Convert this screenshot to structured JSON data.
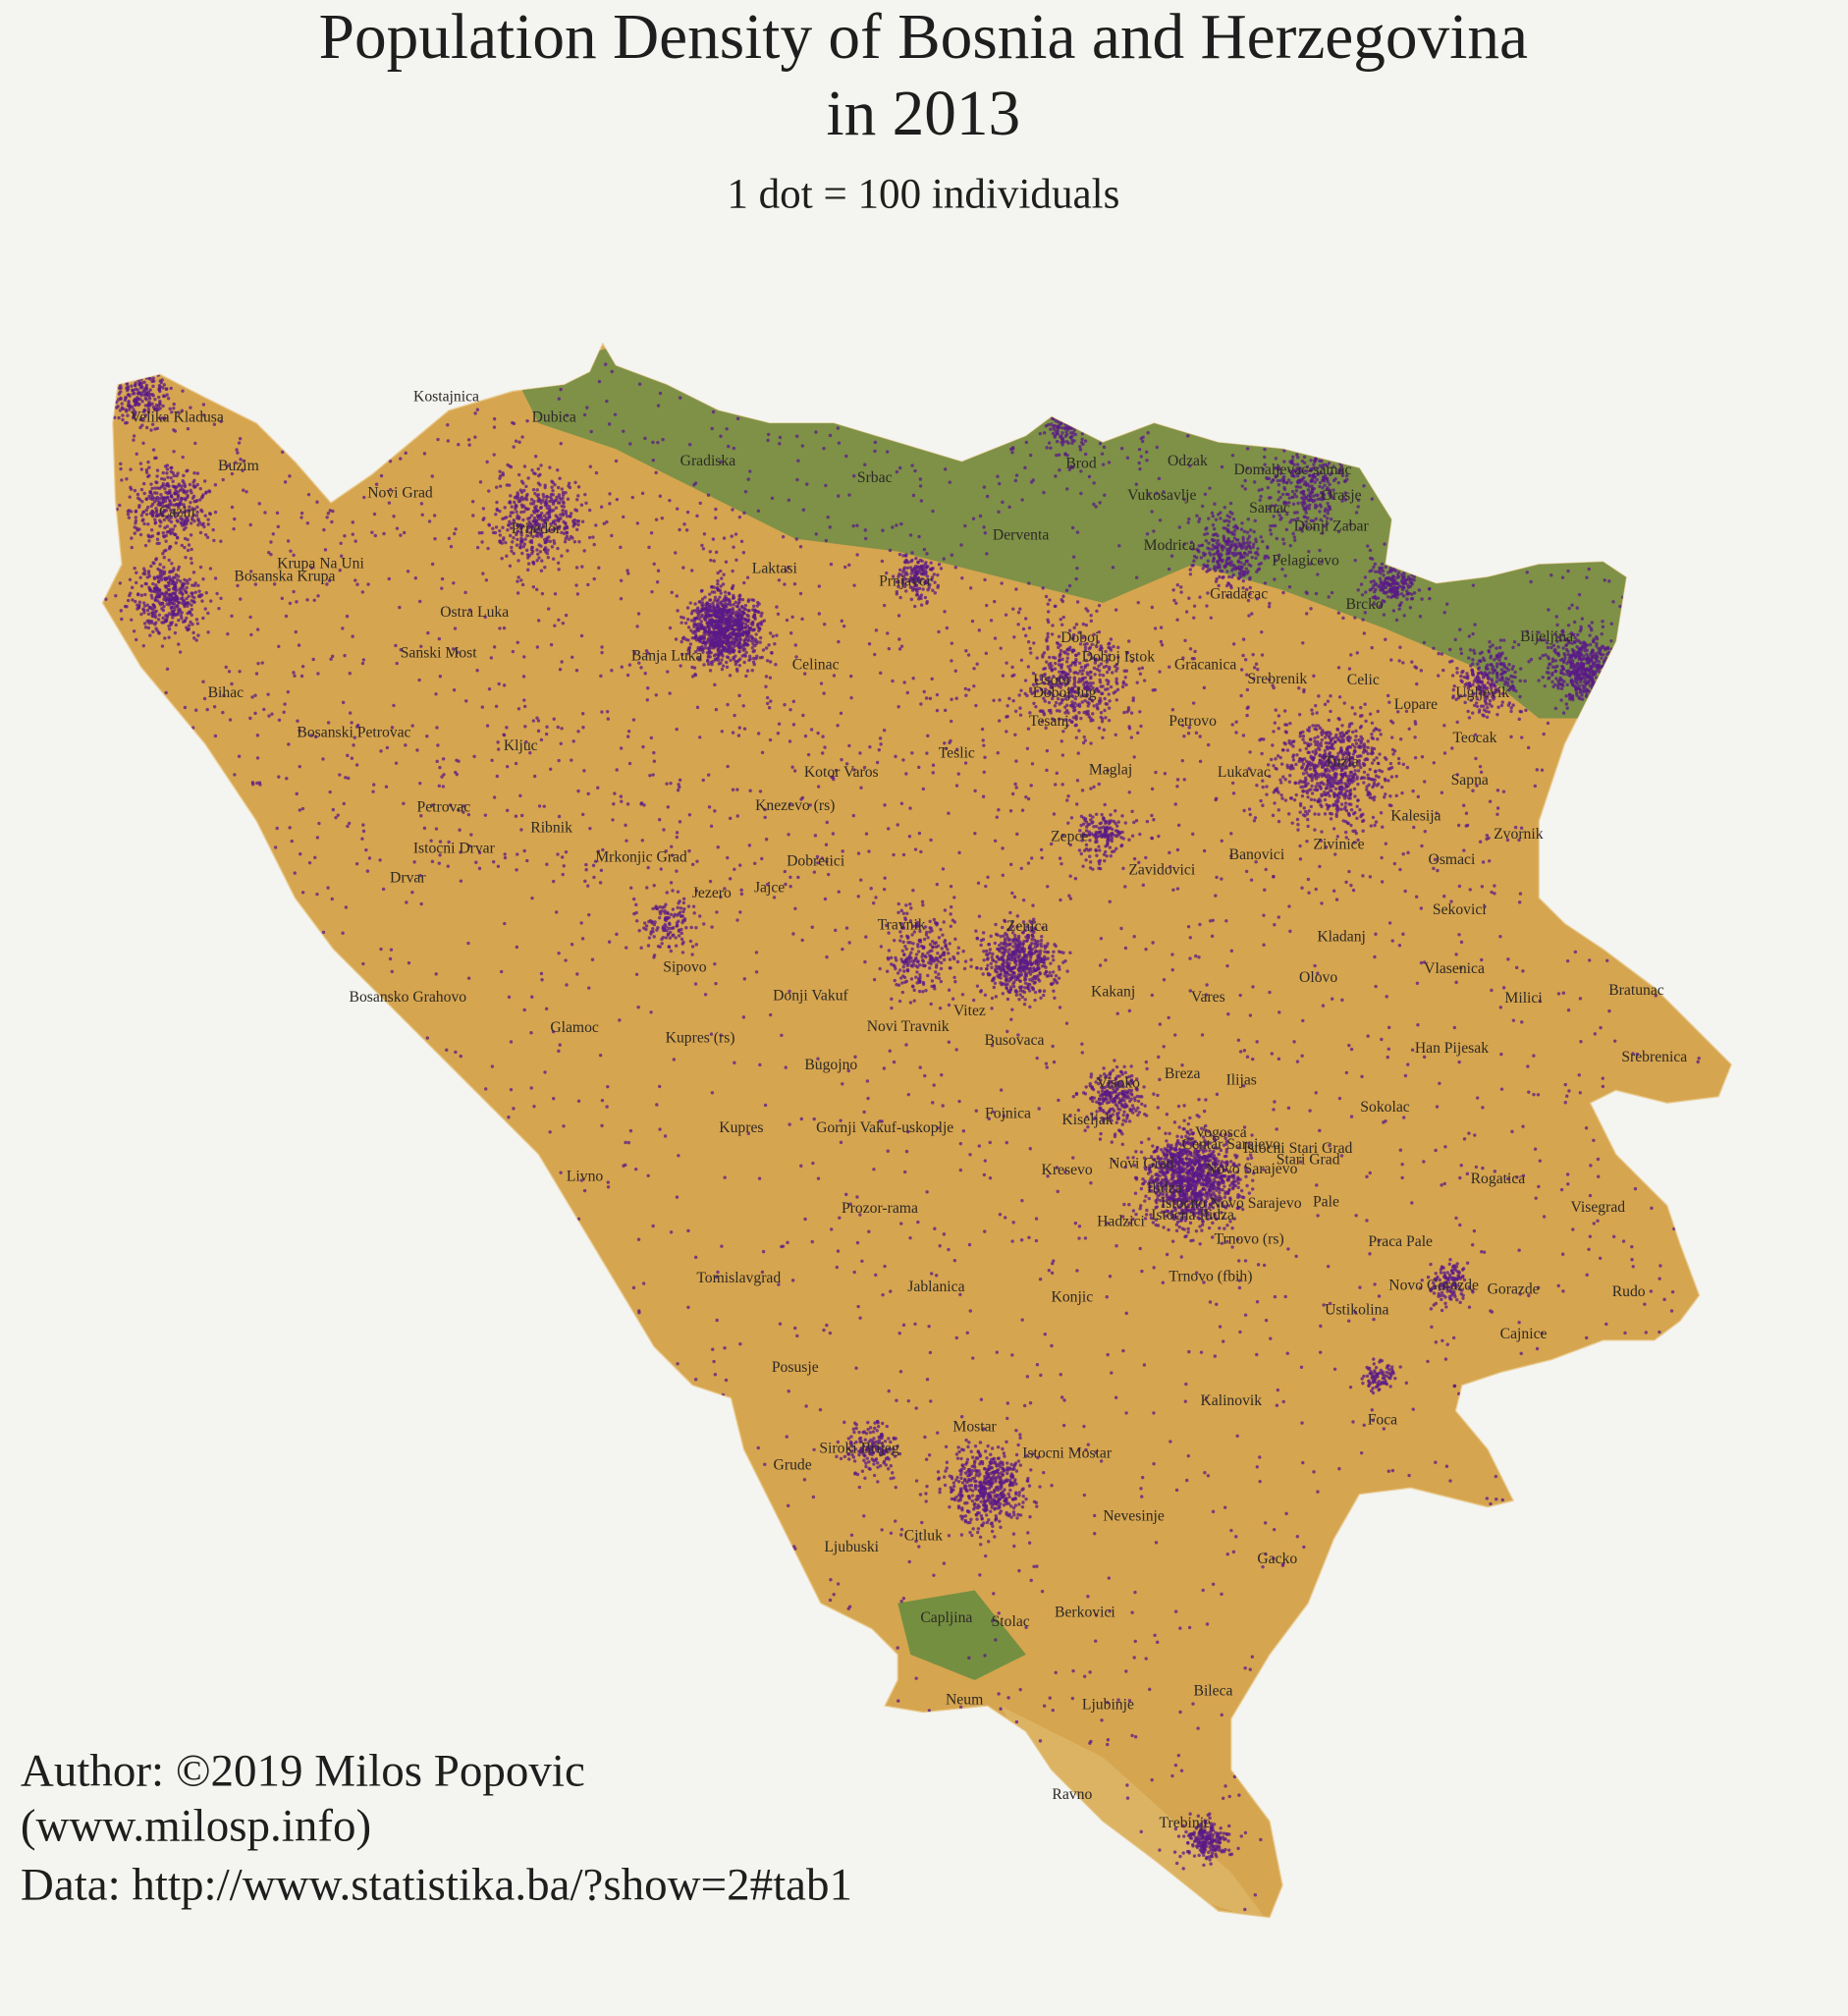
{
  "title_lines": [
    "Population Density of Bosnia and Herzegovina",
    "in 2013"
  ],
  "subtitle": "1 dot = 100 individuals",
  "places": [
    "Kostajnica",
    "Velika Kladusa",
    "Dubica",
    "Buzim",
    "Novi Grad",
    "Gradiska",
    "Srbac",
    "Brod",
    "Odzak",
    "Domaljevac-samac",
    "Vukosavlje",
    "Orasje",
    "Cazin",
    "Prijedor",
    "Samac",
    "Donji Zabar",
    "Derventa",
    "Modrica",
    "Pelagicevo",
    "Krupa Na Uni",
    "Laktasi",
    "Bosanska Krupa",
    "Prnjavor",
    "Gradacac",
    "Brcko",
    "Ostra Luka",
    "Bijeljina",
    "Doboj",
    "Banja Luka",
    "Sanski Most",
    "Celinac",
    "Doboj Istok",
    "Gracanica",
    "Srebrenik",
    "Celic",
    "Usora",
    "Doboj Jug",
    "Tesanj",
    "Ugljevik",
    "Lopare",
    "Bihac",
    "Bosanski Petrovac",
    "Petrovo",
    "Teocak",
    "Kljuc",
    "Teslic",
    "Maglaj",
    "Lukavac",
    "Tuzla",
    "Sapna",
    "Kotor Varos",
    "Kalesija",
    "Zvornik",
    "Petrovac",
    "Ribnik",
    "Knezevo (rs)",
    "Istocni Drvar",
    "Mrkonjic Grad",
    "Dobretici",
    "Zepce",
    "Banovici",
    "Zivinice",
    "Osmaci",
    "Drvar",
    "Jezero",
    "Jajce",
    "Zavidovici",
    "Sekovici",
    "Kladanj",
    "Travnik",
    "Zenica",
    "Sipovo",
    "Vlasenica",
    "Olovo",
    "Bratunac",
    "Donji Vakuf",
    "Kakanj",
    "Vares",
    "Milici",
    "Bosansko Grahovo",
    "Vitez",
    "Glamoc",
    "Novi Travnik",
    "Kupres (rs)",
    "Busovaca",
    "Han Pijesak",
    "Srebrenica",
    "Bugojno",
    "Breza",
    "Ilijas",
    "Visoko",
    "Sokolac",
    "Fojnica",
    "Kiseljak",
    "Kupres",
    "Gornji Vakuf-uskoplje",
    "Vogosca",
    "Centar Sarajevo",
    "Istocni Stari Grad",
    "Stari Grad",
    "Novi Grad",
    "Novo Sarajevo",
    "Kresevo",
    "Livno",
    "Rogatica",
    "Ilidza",
    "Istocno Novo Sarajevo",
    "Pale",
    "Visegrad",
    "Prozor-rama",
    "Istocna Ilidza",
    "Hadzici",
    "Trnovo (rs)",
    "Praca Pale",
    "Tomislavgrad",
    "Trnovo (fbih)",
    "Gorazde",
    "Novo Gorazde",
    "Rudo",
    "Jablanica",
    "Konjic",
    "Ustikolina",
    "Cajnice",
    "Posusje",
    "Kalinovik",
    "Foca",
    "Mostar",
    "Siroki Brijeg",
    "Istocni Mostar",
    "Grude",
    "Nevesinje",
    "Citluk",
    "Ljubuski",
    "Gacko",
    "Capljina",
    "Stolac",
    "Berkovici",
    "Neum",
    "Ljubinje",
    "Bileca",
    "Ravno",
    "Trebinje"
  ],
  "credits": [
    "Author: ©2019 Milos Popovic",
    "(www.milosp.info)",
    "Data: http://www.statistika.ba/?show=2#tab1"
  ]
}
